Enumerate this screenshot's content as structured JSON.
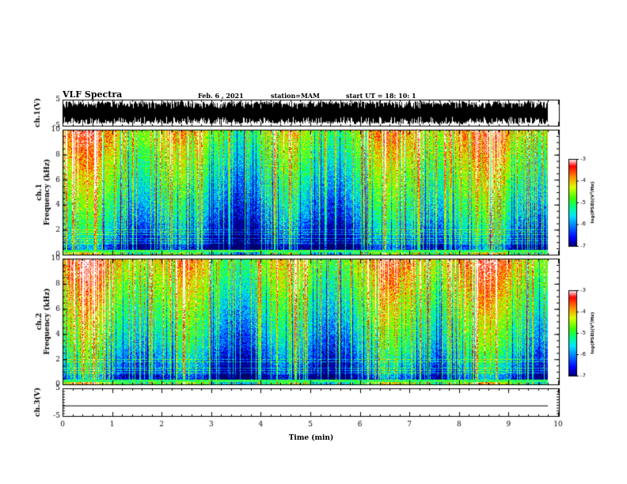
{
  "header": {
    "title": "VLF Spectra",
    "date": "Feb. 6 , 2021",
    "station": "station=MAM",
    "start": "start  UT =  18: 10: 1"
  },
  "chart_data": [
    {
      "type": "line",
      "panel": "ch1-waveform",
      "ylabel": "ch.1(V)",
      "ylim": [
        -5,
        5
      ],
      "yticks": [
        "5",
        "-5"
      ],
      "xlim": [
        0,
        10
      ],
      "description_values": "dense bursts spanning full range"
    },
    {
      "type": "heatmap",
      "panel": "ch1-spectrogram",
      "ylabel": "ch.1\nFrequency (kHz)",
      "ylim": [
        0,
        10
      ],
      "yticks": [
        "0",
        "2",
        "4",
        "6",
        "8",
        "10"
      ],
      "xlim": [
        0,
        9.83
      ],
      "colorbar": {
        "label": "log(PSD)(V²/Hz)",
        "range": [
          -7,
          -3
        ],
        "ticks": [
          "-3",
          "-4",
          "-5",
          "-6",
          "-7"
        ]
      }
    },
    {
      "type": "heatmap",
      "panel": "ch2-spectrogram",
      "ylabel": "ch.2\nFrequency (kHz)",
      "ylim": [
        0,
        10
      ],
      "yticks": [
        "0",
        "2",
        "4",
        "6",
        "8",
        "10"
      ],
      "xlim": [
        0,
        9.83
      ],
      "colorbar": {
        "label": "log(PSD)(V²/Hz)",
        "range": [
          -7,
          -3
        ],
        "ticks": [
          "-3",
          "-4",
          "-5",
          "-6",
          "-7"
        ]
      }
    },
    {
      "type": "line",
      "panel": "ch3-waveform",
      "ylabel": "ch.3(V)",
      "ylim": [
        -5,
        5
      ],
      "yticks": [
        "5",
        "-5"
      ],
      "xlim": [
        0,
        9.83
      ],
      "values_note": "flat line near -1 V",
      "y_level": -1.2
    }
  ],
  "xaxis": {
    "label": "Time  (min)",
    "ticks": [
      "0",
      "1",
      "2",
      "3",
      "4",
      "5",
      "6",
      "7",
      "8",
      "9",
      "10"
    ],
    "range": [
      0,
      10
    ]
  },
  "colors": {
    "colormap": [
      "#000080",
      "#0000ff",
      "#00a0ff",
      "#00ffff",
      "#00ff80",
      "#80ff00",
      "#ffff00",
      "#ff8000",
      "#ff0000",
      "#ffffff"
    ]
  }
}
